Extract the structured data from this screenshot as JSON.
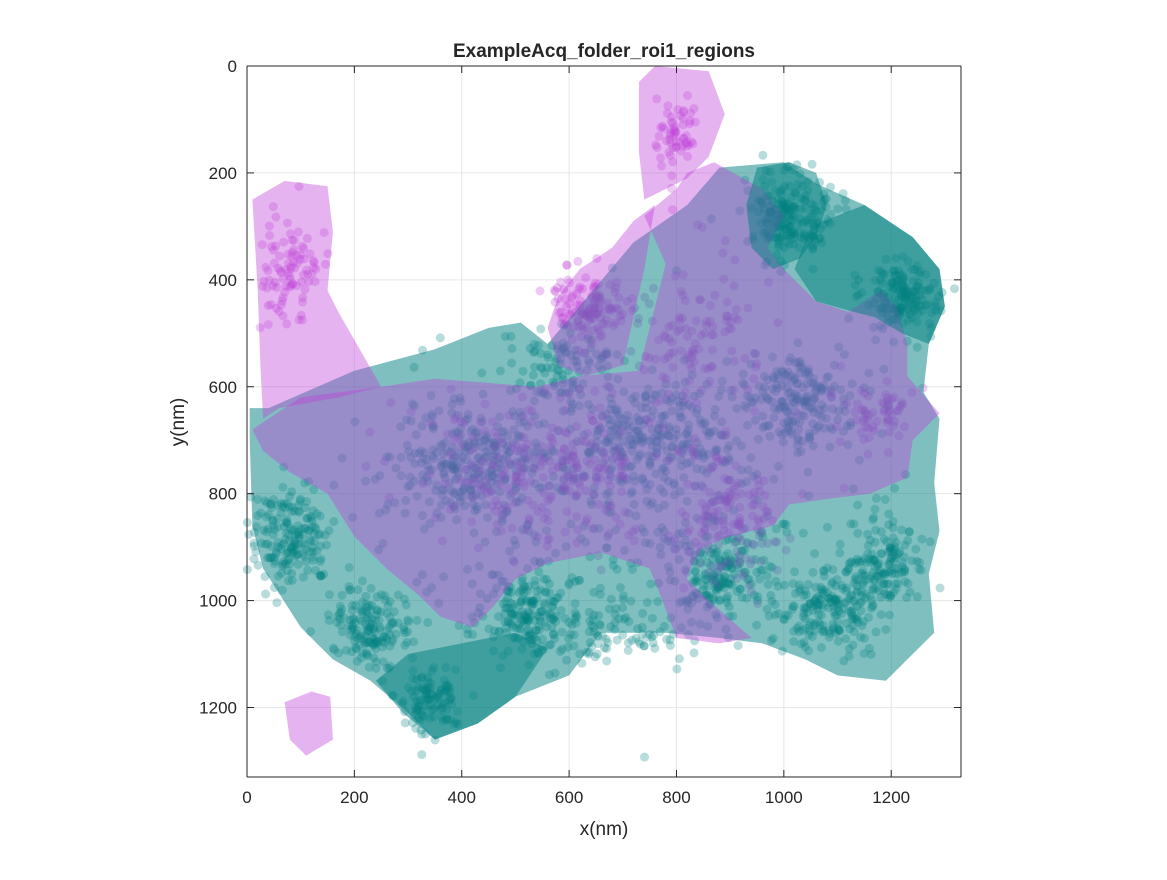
{
  "colors": {
    "teal": "#008080",
    "magenta": "#bf40d9",
    "axis": "#262626",
    "grid": "#e6e6e6"
  },
  "chart_data": {
    "type": "scatter",
    "title": "ExampleAcq_folder_roi1_regions",
    "xlabel": "x(nm)",
    "ylabel": "y(nm)",
    "xlim": [
      0,
      1330
    ],
    "ylim": [
      0,
      1330
    ],
    "y_reversed": true,
    "grid": true,
    "xticks": [
      0,
      200,
      400,
      600,
      800,
      1000,
      1200
    ],
    "yticks": [
      0,
      200,
      400,
      600,
      800,
      1000,
      1200
    ],
    "xtick_labels": [
      "0",
      "200",
      "400",
      "600",
      "800",
      "1000",
      "1200"
    ],
    "ytick_labels": [
      "0",
      "200",
      "400",
      "600",
      "800",
      "1000",
      "1200"
    ],
    "regions": [
      {
        "color": "teal",
        "points": [
          [
            5,
            640
          ],
          [
            40,
            640
          ],
          [
            200,
            570
          ],
          [
            350,
            530
          ],
          [
            450,
            490
          ],
          [
            510,
            480
          ],
          [
            560,
            520
          ],
          [
            720,
            330
          ],
          [
            820,
            260
          ],
          [
            880,
            190
          ],
          [
            1000,
            180
          ],
          [
            1060,
            220
          ],
          [
            1150,
            260
          ],
          [
            1240,
            320
          ],
          [
            1290,
            380
          ],
          [
            1300,
            450
          ],
          [
            1270,
            520
          ],
          [
            1260,
            610
          ],
          [
            1290,
            660
          ],
          [
            1280,
            780
          ],
          [
            1290,
            870
          ],
          [
            1270,
            950
          ],
          [
            1280,
            1060
          ],
          [
            1190,
            1150
          ],
          [
            1100,
            1140
          ],
          [
            1040,
            1110
          ],
          [
            960,
            1080
          ],
          [
            880,
            1070
          ],
          [
            780,
            1060
          ],
          [
            660,
            1060
          ],
          [
            600,
            1140
          ],
          [
            500,
            1180
          ],
          [
            430,
            1230
          ],
          [
            350,
            1260
          ],
          [
            300,
            1210
          ],
          [
            230,
            1150
          ],
          [
            160,
            1110
          ],
          [
            100,
            1050
          ],
          [
            30,
            940
          ],
          [
            10,
            860
          ],
          [
            5,
            700
          ]
        ]
      },
      {
        "color": "teal",
        "points": [
          [
            240,
            1150
          ],
          [
            300,
            1100
          ],
          [
            400,
            1080
          ],
          [
            500,
            1060
          ],
          [
            560,
            1090
          ],
          [
            500,
            1180
          ],
          [
            430,
            1230
          ],
          [
            350,
            1260
          ],
          [
            290,
            1210
          ]
        ]
      },
      {
        "color": "magenta",
        "points": [
          [
            10,
            250
          ],
          [
            70,
            215
          ],
          [
            150,
            225
          ],
          [
            160,
            310
          ],
          [
            150,
            420
          ],
          [
            170,
            460
          ],
          [
            210,
            530
          ],
          [
            250,
            600
          ],
          [
            170,
            620
          ],
          [
            60,
            640
          ],
          [
            30,
            660
          ],
          [
            25,
            560
          ],
          [
            20,
            420
          ]
        ]
      },
      {
        "color": "magenta",
        "points": [
          [
            10,
            680
          ],
          [
            100,
            620
          ],
          [
            250,
            600
          ],
          [
            350,
            585
          ],
          [
            540,
            600
          ],
          [
            620,
            580
          ],
          [
            730,
            570
          ],
          [
            770,
            410
          ],
          [
            780,
            370
          ],
          [
            740,
            280
          ],
          [
            800,
            230
          ],
          [
            820,
            200
          ],
          [
            870,
            180
          ],
          [
            960,
            230
          ],
          [
            1000,
            280
          ],
          [
            970,
            340
          ],
          [
            1000,
            380
          ],
          [
            1060,
            440
          ],
          [
            1120,
            460
          ],
          [
            1180,
            420
          ],
          [
            1210,
            450
          ],
          [
            1230,
            520
          ],
          [
            1230,
            580
          ],
          [
            1290,
            650
          ],
          [
            1240,
            700
          ],
          [
            1230,
            770
          ],
          [
            1160,
            800
          ],
          [
            1080,
            810
          ],
          [
            1010,
            820
          ],
          [
            980,
            860
          ],
          [
            900,
            880
          ],
          [
            850,
            900
          ],
          [
            820,
            950
          ],
          [
            820,
            960
          ],
          [
            860,
            1000
          ],
          [
            940,
            1070
          ],
          [
            880,
            1080
          ],
          [
            800,
            1070
          ],
          [
            770,
            990
          ],
          [
            750,
            940
          ],
          [
            660,
            910
          ],
          [
            560,
            930
          ],
          [
            500,
            960
          ],
          [
            460,
            1010
          ],
          [
            420,
            1050
          ],
          [
            360,
            1030
          ],
          [
            320,
            990
          ],
          [
            260,
            940
          ],
          [
            200,
            880
          ],
          [
            150,
            800
          ],
          [
            80,
            760
          ],
          [
            30,
            720
          ]
        ]
      },
      {
        "color": "magenta",
        "points": [
          [
            580,
            430
          ],
          [
            620,
            380
          ],
          [
            680,
            340
          ],
          [
            720,
            290
          ],
          [
            760,
            260
          ],
          [
            740,
            380
          ],
          [
            720,
            470
          ],
          [
            700,
            560
          ],
          [
            630,
            580
          ],
          [
            580,
            560
          ],
          [
            560,
            490
          ]
        ]
      },
      {
        "color": "magenta",
        "points": [
          [
            730,
            30
          ],
          [
            760,
            0
          ],
          [
            860,
            10
          ],
          [
            890,
            90
          ],
          [
            860,
            170
          ],
          [
            820,
            210
          ],
          [
            780,
            230
          ],
          [
            740,
            250
          ],
          [
            730,
            160
          ]
        ]
      },
      {
        "color": "magenta",
        "points": [
          [
            70,
            1190
          ],
          [
            120,
            1170
          ],
          [
            155,
            1180
          ],
          [
            160,
            1260
          ],
          [
            110,
            1290
          ],
          [
            80,
            1260
          ]
        ]
      },
      {
        "color": "teal",
        "points": [
          [
            950,
            190
          ],
          [
            1010,
            180
          ],
          [
            1060,
            200
          ],
          [
            1080,
            260
          ],
          [
            1060,
            320
          ],
          [
            1030,
            360
          ],
          [
            980,
            380
          ],
          [
            940,
            340
          ],
          [
            930,
            260
          ]
        ]
      },
      {
        "color": "teal",
        "points": [
          [
            1050,
            300
          ],
          [
            1150,
            260
          ],
          [
            1240,
            320
          ],
          [
            1290,
            380
          ],
          [
            1300,
            450
          ],
          [
            1270,
            520
          ],
          [
            1220,
            500
          ],
          [
            1170,
            470
          ],
          [
            1130,
            460
          ],
          [
            1060,
            440
          ],
          [
            1020,
            380
          ]
        ]
      }
    ],
    "point_density": [
      {
        "series": "teal",
        "center": [
          80,
          880
        ],
        "spread": [
          70,
          90
        ],
        "count": 180
      },
      {
        "series": "teal",
        "center": [
          230,
          1050
        ],
        "spread": [
          70,
          60
        ],
        "count": 160
      },
      {
        "series": "teal",
        "center": [
          340,
          1180
        ],
        "spread": [
          60,
          60
        ],
        "count": 100
      },
      {
        "series": "teal",
        "center": [
          520,
          1020
        ],
        "spread": [
          70,
          60
        ],
        "count": 150
      },
      {
        "series": "teal",
        "center": [
          880,
          960
        ],
        "spread": [
          80,
          70
        ],
        "count": 140
      },
      {
        "series": "teal",
        "center": [
          1080,
          1010
        ],
        "spread": [
          90,
          80
        ],
        "count": 200
      },
      {
        "series": "teal",
        "center": [
          1190,
          930
        ],
        "spread": [
          70,
          70
        ],
        "count": 140
      },
      {
        "series": "teal",
        "center": [
          1010,
          280
        ],
        "spread": [
          70,
          70
        ],
        "count": 200
      },
      {
        "series": "teal",
        "center": [
          1220,
          430
        ],
        "spread": [
          60,
          60
        ],
        "count": 160
      },
      {
        "series": "teal",
        "center": [
          1020,
          620
        ],
        "spread": [
          90,
          80
        ],
        "count": 180
      },
      {
        "series": "teal",
        "center": [
          420,
          740
        ],
        "spread": [
          120,
          90
        ],
        "count": 220
      },
      {
        "series": "teal",
        "center": [
          750,
          700
        ],
        "spread": [
          140,
          100
        ],
        "count": 200
      },
      {
        "series": "teal",
        "center": [
          580,
          560
        ],
        "spread": [
          80,
          60
        ],
        "count": 80
      },
      {
        "series": "teal",
        "center": [
          640,
          1060
        ],
        "spread": [
          200,
          60
        ],
        "count": 120
      },
      {
        "series": "teal",
        "center": [
          660,
          800
        ],
        "spread": [
          400,
          250
        ],
        "count": 400
      },
      {
        "series": "magenta",
        "center": [
          80,
          380
        ],
        "spread": [
          50,
          90
        ],
        "count": 90
      },
      {
        "series": "magenta",
        "center": [
          640,
          450
        ],
        "spread": [
          60,
          60
        ],
        "count": 120
      },
      {
        "series": "magenta",
        "center": [
          800,
          120
        ],
        "spread": [
          40,
          60
        ],
        "count": 60
      },
      {
        "series": "magenta",
        "center": [
          560,
          760
        ],
        "spread": [
          220,
          120
        ],
        "count": 260
      },
      {
        "series": "magenta",
        "center": [
          900,
          850
        ],
        "spread": [
          90,
          120
        ],
        "count": 140
      },
      {
        "series": "magenta",
        "center": [
          1180,
          650
        ],
        "spread": [
          60,
          60
        ],
        "count": 60
      },
      {
        "series": "magenta",
        "center": [
          820,
          500
        ],
        "spread": [
          120,
          150
        ],
        "count": 120
      }
    ]
  }
}
